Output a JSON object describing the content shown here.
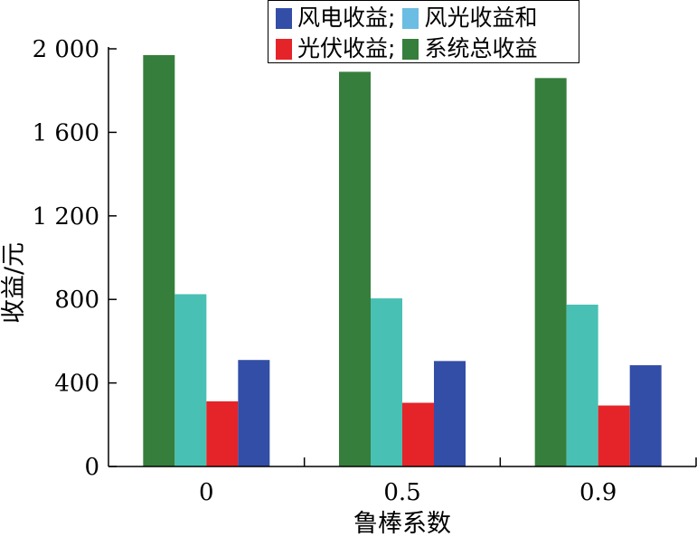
{
  "chart_data": {
    "type": "bar",
    "title": "",
    "xlabel": "鲁棒系数",
    "ylabel": "收益/元",
    "categories": [
      "0",
      "0.5",
      "0.9"
    ],
    "ylim": [
      0,
      2000
    ],
    "yticks": [
      0,
      400,
      800,
      1200,
      1600,
      2000
    ],
    "ytick_labels": [
      "0",
      "400",
      "800",
      "1 200",
      "1 600",
      "2 000"
    ],
    "grid": false,
    "legend_position": "top-right",
    "series": [
      {
        "name": "系统总收益",
        "color": "#367e3c",
        "values": [
          1970,
          1890,
          1860
        ]
      },
      {
        "name": "风光收益和",
        "color": "#49c0b4",
        "values": [
          825,
          805,
          775
        ]
      },
      {
        "name": "光伏收益",
        "color": "#e52429",
        "values": [
          312,
          305,
          292
        ]
      },
      {
        "name": "风电收益",
        "color": "#334ea7",
        "values": [
          510,
          505,
          485
        ]
      }
    ]
  },
  "legend": {
    "row1": [
      {
        "label": "风电收益;",
        "color": "#334ea7"
      },
      {
        "label": "风光收益和",
        "color": "#6bbde3"
      }
    ],
    "row2": [
      {
        "label": "光伏收益;",
        "color": "#e52429"
      },
      {
        "label": "系统总收益",
        "color": "#367e3c"
      }
    ]
  }
}
